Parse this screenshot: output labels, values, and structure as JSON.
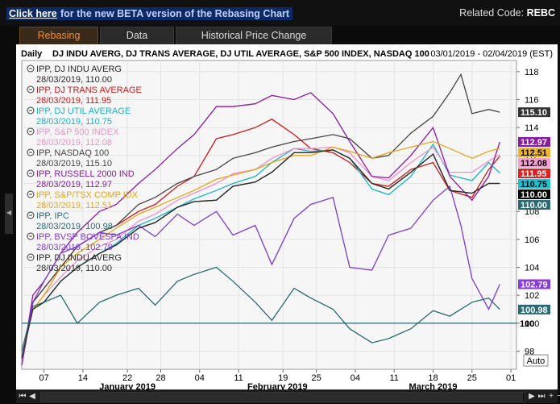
{
  "header": {
    "beta_link": "Click here",
    "beta_text": "for the new BETA version of the Rebasing Chart",
    "related_label": "Related Code:",
    "related_code": "REBC"
  },
  "tabs": [
    {
      "label": "Rebasing",
      "active": true
    },
    {
      "label": "Data",
      "active": false
    },
    {
      "label": "Historical Price Change",
      "active": false
    }
  ],
  "chart_title": {
    "period": "Daily",
    "instruments": "DJ INDU AVERG, DJ TRANS AVERAGE, DJ UTIL AVERAGE, S&P 500 INDEX, NASDAQ 100",
    "range": "03/01/2019 - 02/04/2019 (EST)"
  },
  "legend": [
    {
      "name": "IPP, DJ INDU AVERG",
      "value": "28/03/2019, 110.00",
      "color": "#2a2a2a"
    },
    {
      "name": "IPP, DJ TRANS AVERAGE",
      "value": "28/03/2019, 111.95",
      "color": "#d01818"
    },
    {
      "name": "IPP, DJ UTIL AVERAGE",
      "value": "28/03/2019, 110.75",
      "color": "#18b4c4"
    },
    {
      "name": "IPP, S&P 500 INDEX",
      "value": "28/03/2019, 112.08",
      "color": "#f090c8"
    },
    {
      "name": "IPP, NASDAQ 100",
      "value": "28/03/2019, 115.10",
      "color": "#444444"
    },
    {
      "name": "IPP, RUSSELL 2000 IND",
      "value": "28/03/2019, 112.97",
      "color": "#8a1aa0"
    },
    {
      "name": "IPP, S&P/TSX COMP IDX",
      "value": "28/03/2019, 112.51",
      "color": "#e8a418"
    },
    {
      "name": "IPP, IPC",
      "value": "28/03/2019, 100.98",
      "color": "#2a6a74"
    },
    {
      "name": "IPP, BVSP BOVESPA IND",
      "value": "28/03/2019, 102.79",
      "color": "#7a3ad0"
    },
    {
      "name": "IPP, DJ INDU AVERG",
      "value": "28/03/2019, 110.00",
      "color": "#2a2a2a"
    }
  ],
  "value_labels": [
    {
      "text": "115.10",
      "value": 115.1,
      "bg": "#333333",
      "fg": "#ffffff"
    },
    {
      "text": "112.97",
      "value": 112.97,
      "bg": "#8a1aa0",
      "fg": "#ffffff"
    },
    {
      "text": "112.51",
      "value": 112.51,
      "bg": "#f0b428",
      "fg": "#000000"
    },
    {
      "text": "112.08",
      "value": 112.08,
      "bg": "#f4a0d0",
      "fg": "#000000"
    },
    {
      "text": "111.95",
      "value": 111.95,
      "bg": "#e02020",
      "fg": "#ffffff"
    },
    {
      "text": "110.75",
      "value": 110.75,
      "bg": "#20c0d0",
      "fg": "#000000"
    },
    {
      "text": "110.00",
      "value": 110.0,
      "bg": "#000000",
      "fg": "#ffffff"
    },
    {
      "text": "110.00",
      "value": 110.0,
      "bg": "#2a6a74",
      "fg": "#ffffff"
    },
    {
      "text": "102.79",
      "value": 102.79,
      "bg": "#8a3ae0",
      "fg": "#ffffff"
    },
    {
      "text": "100.98",
      "value": 100.98,
      "bg": "#2a6a74",
      "fg": "#ffffff"
    }
  ],
  "auto_button": "Auto",
  "chart_data": {
    "type": "line",
    "x_ticks": [
      "07",
      "14",
      "22",
      "28",
      "04",
      "11",
      "19",
      "25",
      "04",
      "11",
      "18",
      "25",
      "01"
    ],
    "x_tick_days": [
      4,
      11,
      19,
      25,
      32,
      39,
      47,
      53,
      60,
      67,
      74,
      81,
      88
    ],
    "month_labels": [
      {
        "text": "January 2019",
        "day": 19
      },
      {
        "text": "February 2019",
        "day": 46
      },
      {
        "text": "March 2019",
        "day": 74
      }
    ],
    "xlim": [
      0,
      89
    ],
    "y_ticks": [
      98,
      100,
      102,
      104,
      106,
      108,
      110,
      112,
      114,
      116,
      118
    ],
    "ylim": [
      96.7,
      118.8
    ],
    "base_value": 100,
    "series": [
      {
        "name": "DJ INDU AVERG",
        "color": "#2a2a2a",
        "x": [
          0,
          2,
          4,
          7,
          10,
          14,
          17,
          21,
          24,
          28,
          31,
          35,
          38,
          42,
          45,
          49,
          52,
          56,
          59,
          63,
          66,
          70,
          74,
          77,
          81,
          84,
          86
        ],
        "y": [
          97.5,
          101,
          101.5,
          103,
          104,
          105,
          105.6,
          106.8,
          107.2,
          108.3,
          108.7,
          108.8,
          109.8,
          110.1,
          110.8,
          112.2,
          112.2,
          112.4,
          111.8,
          110,
          109.6,
          110.8,
          112.1,
          109.5,
          109.3,
          110,
          110
        ]
      },
      {
        "name": "DJ TRANS AVERAGE",
        "color": "#d01818",
        "x": [
          0,
          2,
          4,
          7,
          10,
          14,
          17,
          21,
          24,
          28,
          31,
          35,
          38,
          42,
          45,
          49,
          52,
          56,
          59,
          63,
          66,
          70,
          74,
          77,
          81,
          84,
          86
        ],
        "y": [
          97,
          101.5,
          102.5,
          104,
          105.5,
          106.5,
          107,
          108,
          108.5,
          109.8,
          110.5,
          113.2,
          113.5,
          114,
          114.6,
          113.5,
          112.5,
          112.2,
          111.5,
          110,
          109.8,
          111,
          111.5,
          109.5,
          109,
          111,
          111.95
        ]
      },
      {
        "name": "DJ UTIL AVERAGE",
        "color": "#18b4c4",
        "x": [
          0,
          2,
          4,
          7,
          10,
          14,
          17,
          21,
          24,
          28,
          31,
          35,
          38,
          42,
          45,
          49,
          52,
          56,
          59,
          63,
          66,
          70,
          74,
          77,
          81,
          84,
          86
        ],
        "y": [
          98,
          101,
          101.5,
          103,
          104,
          105,
          105.7,
          107,
          107.5,
          108.3,
          108.9,
          109.5,
          110,
          110.5,
          111.5,
          112.5,
          112.3,
          112.4,
          111.8,
          109.6,
          109.2,
          110.5,
          112.8,
          110.6,
          110.2,
          111.5,
          110.75
        ]
      },
      {
        "name": "S&P 500 INDEX",
        "color": "#f090c8",
        "x": [
          0,
          2,
          4,
          7,
          10,
          14,
          17,
          21,
          24,
          28,
          31,
          35,
          38,
          42,
          45,
          49,
          52,
          56,
          59,
          63,
          66,
          70,
          74,
          77,
          81,
          84,
          86
        ],
        "y": [
          97.5,
          101,
          102,
          103.3,
          104.5,
          105.5,
          106,
          107.3,
          107.8,
          108.8,
          109.3,
          110,
          110.7,
          111,
          111.8,
          112.5,
          112.5,
          112.6,
          112.2,
          110.5,
          110.2,
          111.5,
          112.6,
          110.8,
          110.8,
          111.6,
          112.08
        ]
      },
      {
        "name": "NASDAQ 100",
        "color": "#444444",
        "x": [
          0,
          2,
          4,
          7,
          10,
          14,
          17,
          21,
          24,
          28,
          31,
          35,
          38,
          42,
          45,
          49,
          52,
          56,
          59,
          63,
          66,
          70,
          74,
          77,
          79,
          81,
          84,
          86
        ],
        "y": [
          97,
          101.5,
          102.5,
          104,
          105.5,
          106.5,
          107,
          108.5,
          109,
          110,
          110.5,
          111,
          111.8,
          112.2,
          112.6,
          113,
          113.2,
          113.5,
          113.2,
          111.8,
          112,
          113.6,
          114.8,
          116.5,
          117.8,
          115,
          115.3,
          115.1
        ]
      },
      {
        "name": "RUSSELL 2000 IND",
        "color": "#8a1aa0",
        "x": [
          0,
          2,
          4,
          7,
          10,
          14,
          17,
          21,
          24,
          28,
          31,
          35,
          38,
          42,
          45,
          49,
          52,
          56,
          59,
          63,
          66,
          70,
          74,
          77,
          81,
          84,
          86
        ],
        "y": [
          97,
          102,
          103,
          105,
          106.5,
          108,
          108.5,
          110,
          111,
          112.5,
          113.5,
          115.5,
          115.5,
          115.7,
          116.3,
          116,
          116.5,
          115,
          113,
          110.5,
          110.4,
          112,
          114,
          110.5,
          108.8,
          110.5,
          112.97
        ]
      },
      {
        "name": "S&P/TSX COMP IDX",
        "color": "#e8a418",
        "x": [
          0,
          2,
          4,
          7,
          10,
          14,
          17,
          21,
          24,
          28,
          31,
          35,
          38,
          42,
          45,
          49,
          52,
          56,
          59,
          63,
          66,
          70,
          74,
          77,
          81,
          84,
          86
        ],
        "y": [
          98,
          101,
          102,
          104,
          105,
          106,
          106.8,
          107.8,
          108.3,
          109,
          109.5,
          110.3,
          110.6,
          111,
          111.5,
          112,
          112,
          112.6,
          112.3,
          111.8,
          112.2,
          112.6,
          113,
          112.5,
          111.8,
          112.3,
          112.51
        ]
      },
      {
        "name": "IPC",
        "color": "#2a6a74",
        "x": [
          0,
          2,
          4,
          7,
          10,
          14,
          17,
          21,
          24,
          28,
          31,
          35,
          38,
          42,
          45,
          49,
          52,
          56,
          59,
          63,
          66,
          70,
          74,
          77,
          81,
          84,
          86
        ],
        "y": [
          98,
          101.2,
          101.5,
          102,
          100,
          101.5,
          102,
          102.5,
          101.3,
          103,
          103.5,
          104,
          103,
          101.5,
          100.2,
          102.5,
          101.8,
          101,
          99.6,
          98.6,
          98.9,
          99.6,
          100.9,
          100.5,
          101.5,
          101.8,
          100.98
        ]
      },
      {
        "name": "BVSP BOVESPA IND",
        "color": "#7a3ad0",
        "x": [
          0,
          2,
          4,
          7,
          10,
          14,
          17,
          21,
          24,
          28,
          31,
          35,
          38,
          42,
          45,
          49,
          52,
          56,
          59,
          63,
          66,
          70,
          74,
          77,
          79,
          81,
          84,
          86
        ],
        "y": [
          97,
          101.5,
          103,
          105,
          105.5,
          106.5,
          106.3,
          107,
          106.2,
          107.8,
          107,
          108,
          106.3,
          107,
          104.2,
          107.5,
          108.5,
          109,
          104,
          103.8,
          106.3,
          106.8,
          108.8,
          109.8,
          107,
          103.2,
          101,
          102.79
        ]
      },
      {
        "name": "DJ INDU AVERG",
        "color": "#2a2a2a",
        "x": [
          0,
          2,
          4,
          7,
          10,
          14,
          17,
          21,
          24,
          28,
          31,
          35,
          38,
          42,
          45,
          49,
          52,
          56,
          59,
          63,
          66,
          70,
          74,
          77,
          81,
          84,
          86
        ],
        "y": [
          97.5,
          101,
          101.5,
          103,
          104,
          105,
          105.6,
          106.8,
          107.2,
          108.3,
          108.7,
          108.8,
          109.8,
          110.1,
          110.8,
          112.2,
          112.2,
          112.4,
          111.8,
          110,
          109.6,
          110.8,
          112.1,
          109.5,
          109.3,
          110,
          110
        ]
      }
    ]
  }
}
